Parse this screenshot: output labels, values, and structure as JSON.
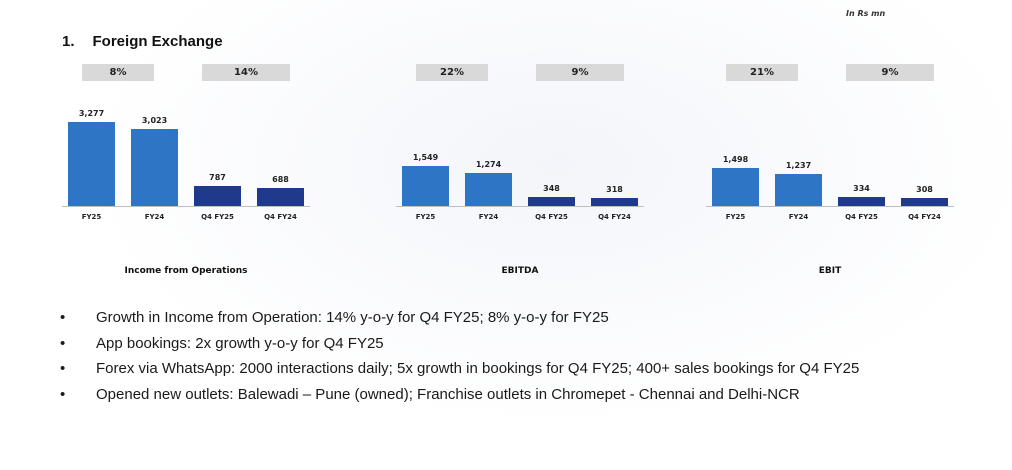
{
  "unit_note": "In Rs mn",
  "section": {
    "number": "1.",
    "title": "Foreign Exchange"
  },
  "colors": {
    "annual_bar": "#2e75c5",
    "quarter_bar": "#1f3a8a",
    "growth_box": "#d9d9d9"
  },
  "chart_data": [
    {
      "type": "bar",
      "title": "Income from Operations",
      "categories": [
        "FY25",
        "FY24",
        "Q4 FY25",
        "Q4 FY24"
      ],
      "values": [
        3277,
        3023,
        787,
        688
      ],
      "value_labels": [
        "3,277",
        "3,023",
        "787",
        "688"
      ],
      "growth": [
        "8%",
        "14%"
      ]
    },
    {
      "type": "bar",
      "title": "EBITDA",
      "categories": [
        "FY25",
        "FY24",
        "Q4 FY25",
        "Q4 FY24"
      ],
      "values": [
        1549,
        1274,
        348,
        318
      ],
      "value_labels": [
        "1,549",
        "1,274",
        "348",
        "318"
      ],
      "growth": [
        "22%",
        "9%"
      ]
    },
    {
      "type": "bar",
      "title": "EBIT",
      "categories": [
        "FY25",
        "FY24",
        "Q4 FY25",
        "Q4 FY24"
      ],
      "values": [
        1498,
        1237,
        334,
        308
      ],
      "value_labels": [
        "1,498",
        "1,237",
        "334",
        "308"
      ],
      "growth": [
        "21%",
        "9%"
      ]
    }
  ],
  "bullets": [
    "Growth in Income from Operation: 14% y-o-y for Q4 FY25; 8% y-o-y for FY25",
    "App bookings: 2x growth y-o-y for Q4 FY25",
    "Forex via WhatsApp: 2000 interactions daily; 5x growth in bookings for Q4 FY25; 400+ sales bookings for Q4 FY25",
    "Opened new outlets: Balewadi – Pune (owned); Franchise outlets in Chromepet - Chennai and Delhi-NCR"
  ]
}
